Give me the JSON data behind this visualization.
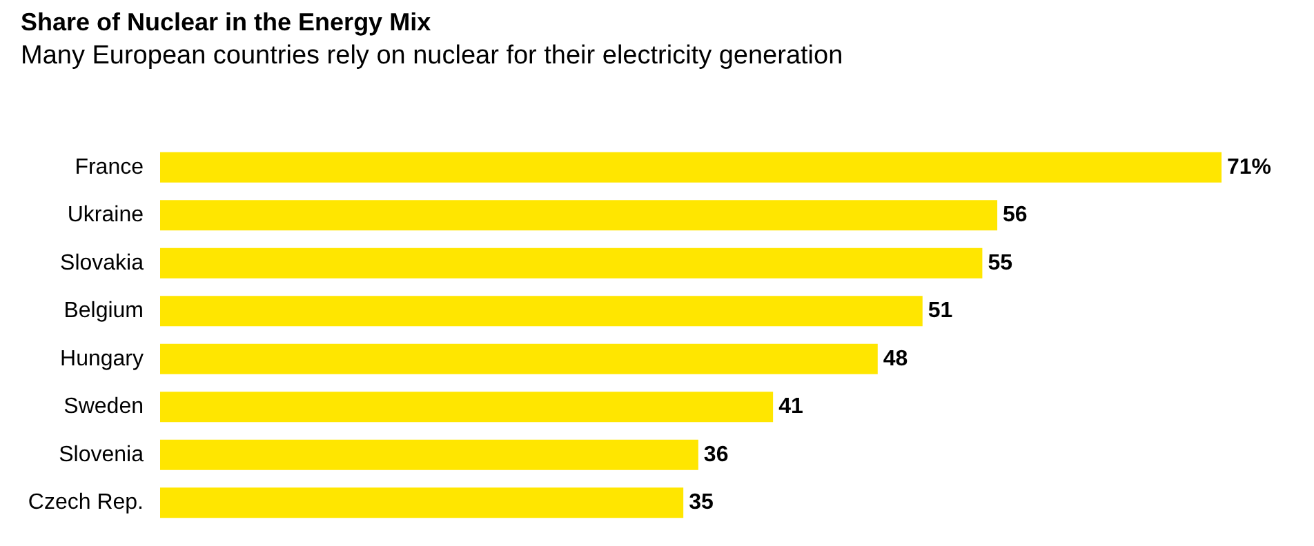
{
  "chart_data": {
    "type": "bar",
    "orientation": "horizontal",
    "title": "Share of Nuclear in the Energy Mix",
    "subtitle": "Many European countries rely on nuclear for their electricity generation",
    "categories": [
      "France",
      "Ukraine",
      "Slovakia",
      "Belgium",
      "Hungary",
      "Sweden",
      "Slovenia",
      "Czech Rep."
    ],
    "values": [
      71,
      56,
      55,
      51,
      48,
      41,
      36,
      35
    ],
    "value_labels": [
      "71%",
      "56",
      "55",
      "51",
      "48",
      "41",
      "36",
      "35"
    ],
    "color": "#ffe600"
  }
}
